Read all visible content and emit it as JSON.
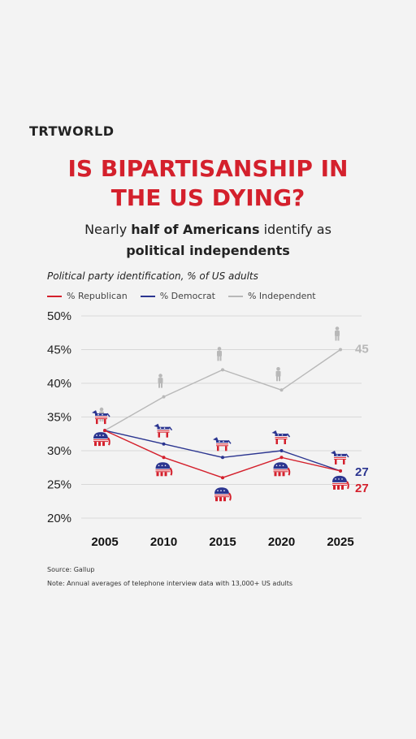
{
  "brand": "TRTWORLD",
  "title_line1": "IS BIPARTISANSHIP IN",
  "title_line2": "THE US DYING?",
  "subtitle_part1": "Nearly ",
  "subtitle_bold1": "half of Americans",
  "subtitle_part2": " identify as",
  "subtitle_bold2": "political independents",
  "chart_heading": "Political party identification, % of US adults",
  "colors": {
    "republican": "#d4202c",
    "democrat": "#2b3590",
    "independent": "#b8b8b8",
    "grid": "#d8d8d8"
  },
  "chart_data": {
    "type": "line",
    "x": [
      2005,
      2010,
      2015,
      2020,
      2025
    ],
    "xticklabels": [
      "2005",
      "2010",
      "2015",
      "2020",
      "2025"
    ],
    "ylim": [
      20,
      50
    ],
    "yticks": [
      20,
      25,
      30,
      35,
      40,
      45,
      50
    ],
    "yticklabels": [
      "20%",
      "25%",
      "30%",
      "35%",
      "40%",
      "45%",
      "50%"
    ],
    "grid": true,
    "legend_position": "top-left",
    "series": [
      {
        "key": "republican",
        "name": "% Republican",
        "values": [
          33,
          29,
          26,
          29,
          27
        ],
        "end_label": "27",
        "icon": "elephant-icon"
      },
      {
        "key": "democrat",
        "name": "% Democrat",
        "values": [
          33,
          31,
          29,
          30,
          27
        ],
        "end_label": "27",
        "icon": "donkey-icon"
      },
      {
        "key": "independent",
        "name": "% Independent",
        "values": [
          33,
          38,
          42,
          39,
          45
        ],
        "end_label": "45",
        "icon": "person-icon"
      }
    ]
  },
  "source": "Source: Gallup",
  "note": "Note: Annual averages of telephone interview data with 13,000+ US adults"
}
